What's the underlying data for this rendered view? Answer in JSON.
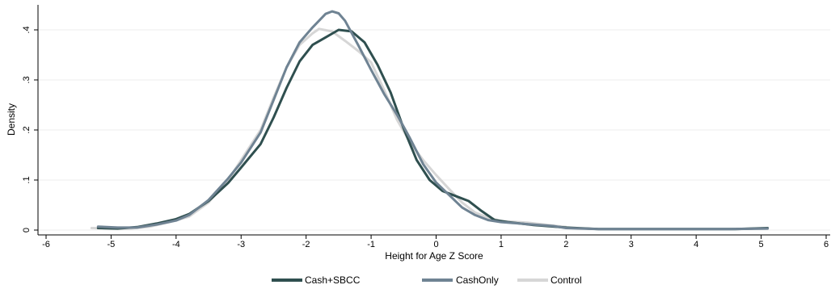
{
  "chart_data": {
    "type": "line",
    "title": "",
    "xlabel": "Height for Age Z Score",
    "ylabel": "Density",
    "xlim": [
      -6,
      6
    ],
    "ylim": [
      0,
      0.45
    ],
    "xticks": [
      -6,
      -5,
      -4,
      -3,
      -2,
      -1,
      0,
      1,
      2,
      3,
      4,
      5,
      6
    ],
    "xtick_labels": [
      "-6",
      "-5",
      "-4",
      "-3",
      "-2",
      "-1",
      "0",
      "1",
      "2",
      "3",
      "4",
      "5",
      "6"
    ],
    "yticks": [
      0,
      0.1,
      0.2,
      0.3,
      0.4
    ],
    "ytick_labels": [
      "0",
      ".1",
      ".2",
      ".3",
      ".4"
    ],
    "grid": "horizontal",
    "legend_position": "bottom",
    "series": [
      {
        "name": "Cash+SBCC",
        "color": "#2f4f4f",
        "points": [
          [
            -5.2,
            0.004
          ],
          [
            -4.9,
            0.003
          ],
          [
            -4.6,
            0.006
          ],
          [
            -4.3,
            0.013
          ],
          [
            -4.0,
            0.022
          ],
          [
            -3.8,
            0.032
          ],
          [
            -3.5,
            0.058
          ],
          [
            -3.2,
            0.094
          ],
          [
            -3.0,
            0.125
          ],
          [
            -2.7,
            0.172
          ],
          [
            -2.5,
            0.225
          ],
          [
            -2.3,
            0.284
          ],
          [
            -2.1,
            0.337
          ],
          [
            -1.9,
            0.37
          ],
          [
            -1.7,
            0.385
          ],
          [
            -1.5,
            0.4
          ],
          [
            -1.3,
            0.397
          ],
          [
            -1.1,
            0.375
          ],
          [
            -0.9,
            0.33
          ],
          [
            -0.7,
            0.275
          ],
          [
            -0.5,
            0.203
          ],
          [
            -0.3,
            0.14
          ],
          [
            -0.1,
            0.1
          ],
          [
            0.1,
            0.078
          ],
          [
            0.3,
            0.068
          ],
          [
            0.5,
            0.058
          ],
          [
            0.7,
            0.038
          ],
          [
            0.9,
            0.02
          ],
          [
            1.1,
            0.016
          ],
          [
            1.5,
            0.01
          ],
          [
            2.0,
            0.005
          ],
          [
            2.5,
            0.002
          ],
          [
            3.0,
            0.002
          ],
          [
            4.0,
            0.002
          ],
          [
            4.6,
            0.002
          ],
          [
            5.1,
            0.004
          ]
        ]
      },
      {
        "name": "CashOnly",
        "color": "#6f8393",
        "points": [
          [
            -5.2,
            0.007
          ],
          [
            -4.9,
            0.005
          ],
          [
            -4.6,
            0.005
          ],
          [
            -4.3,
            0.011
          ],
          [
            -4.0,
            0.019
          ],
          [
            -3.8,
            0.03
          ],
          [
            -3.5,
            0.06
          ],
          [
            -3.2,
            0.103
          ],
          [
            -3.0,
            0.135
          ],
          [
            -2.7,
            0.195
          ],
          [
            -2.5,
            0.26
          ],
          [
            -2.3,
            0.325
          ],
          [
            -2.1,
            0.375
          ],
          [
            -1.9,
            0.405
          ],
          [
            -1.7,
            0.432
          ],
          [
            -1.6,
            0.437
          ],
          [
            -1.5,
            0.433
          ],
          [
            -1.4,
            0.418
          ],
          [
            -1.2,
            0.37
          ],
          [
            -1.0,
            0.32
          ],
          [
            -0.8,
            0.272
          ],
          [
            -0.6,
            0.23
          ],
          [
            -0.4,
            0.183
          ],
          [
            -0.2,
            0.132
          ],
          [
            0.0,
            0.095
          ],
          [
            0.2,
            0.07
          ],
          [
            0.4,
            0.045
          ],
          [
            0.6,
            0.03
          ],
          [
            0.8,
            0.02
          ],
          [
            1.0,
            0.016
          ],
          [
            1.4,
            0.012
          ],
          [
            1.8,
            0.008
          ],
          [
            2.0,
            0.004
          ],
          [
            2.5,
            0.002
          ],
          [
            3.5,
            0.002
          ],
          [
            4.5,
            0.002
          ],
          [
            5.1,
            0.003
          ]
        ]
      },
      {
        "name": "Control",
        "color": "#d6d6d6",
        "points": [
          [
            -5.3,
            0.004
          ],
          [
            -5.0,
            0.003
          ],
          [
            -4.7,
            0.003
          ],
          [
            -4.4,
            0.007
          ],
          [
            -4.1,
            0.016
          ],
          [
            -3.8,
            0.027
          ],
          [
            -3.5,
            0.055
          ],
          [
            -3.2,
            0.1
          ],
          [
            -3.0,
            0.14
          ],
          [
            -2.7,
            0.2
          ],
          [
            -2.5,
            0.265
          ],
          [
            -2.3,
            0.325
          ],
          [
            -2.1,
            0.37
          ],
          [
            -1.9,
            0.393
          ],
          [
            -1.8,
            0.402
          ],
          [
            -1.6,
            0.397
          ],
          [
            -1.4,
            0.378
          ],
          [
            -1.2,
            0.358
          ],
          [
            -1.0,
            0.335
          ],
          [
            -0.8,
            0.28
          ],
          [
            -0.6,
            0.22
          ],
          [
            -0.4,
            0.175
          ],
          [
            -0.2,
            0.14
          ],
          [
            0.0,
            0.11
          ],
          [
            0.2,
            0.082
          ],
          [
            0.4,
            0.055
          ],
          [
            0.6,
            0.035
          ],
          [
            0.8,
            0.025
          ],
          [
            1.0,
            0.018
          ],
          [
            1.4,
            0.015
          ],
          [
            2.0,
            0.006
          ]
        ]
      }
    ]
  }
}
